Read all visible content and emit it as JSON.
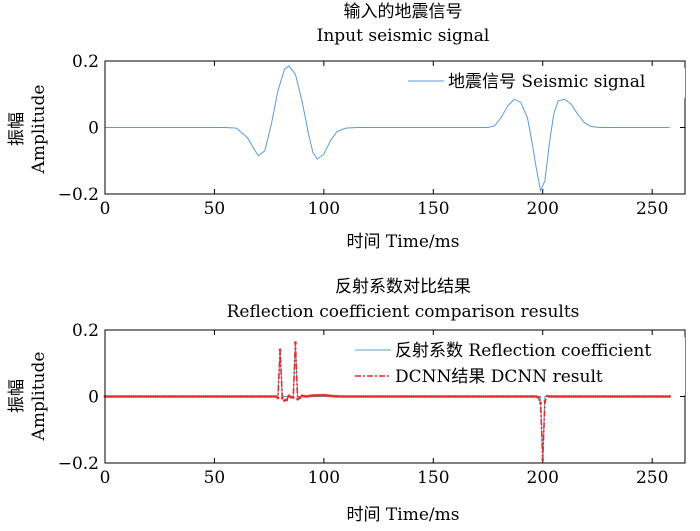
{
  "chart_data": [
    {
      "type": "line",
      "title": "输入的地震信号",
      "subtitle": "Input seismic signal",
      "xlabel": "时间 Time/ms",
      "ylabel_cn": "振幅",
      "ylabel_en": "Amplitude",
      "xlim": [
        0,
        265
      ],
      "ylim": [
        -0.2,
        0.2
      ],
      "xticks": [
        "0",
        "50",
        "100",
        "150",
        "200",
        "250"
      ],
      "yticks": [
        "0.2",
        "0",
        "−0.2"
      ],
      "legend_position": "top-right",
      "series": [
        {
          "name": "地震信号 Seismic signal",
          "color": "#5b9bd5",
          "style": "solid",
          "points": [
            [
              0,
              0
            ],
            [
              55,
              0
            ],
            [
              60,
              -0.002
            ],
            [
              65,
              -0.03
            ],
            [
              70,
              -0.085
            ],
            [
              73,
              -0.07
            ],
            [
              76,
              0.01
            ],
            [
              79,
              0.11
            ],
            [
              82,
              0.175
            ],
            [
              84,
              0.185
            ],
            [
              87,
              0.16
            ],
            [
              90,
              0.08
            ],
            [
              93,
              -0.02
            ],
            [
              95,
              -0.075
            ],
            [
              97,
              -0.095
            ],
            [
              100,
              -0.08
            ],
            [
              103,
              -0.04
            ],
            [
              106,
              -0.012
            ],
            [
              110,
              -0.002
            ],
            [
              115,
              0
            ],
            [
              175,
              0
            ],
            [
              178,
              0.005
            ],
            [
              181,
              0.03
            ],
            [
              184,
              0.065
            ],
            [
              187,
              0.085
            ],
            [
              190,
              0.075
            ],
            [
              193,
              0.03
            ],
            [
              195,
              -0.04
            ],
            [
              197,
              -0.12
            ],
            [
              199,
              -0.19
            ],
            [
              201,
              -0.16
            ],
            [
              203,
              -0.05
            ],
            [
              205,
              0.04
            ],
            [
              207,
              0.08
            ],
            [
              210,
              0.085
            ],
            [
              213,
              0.07
            ],
            [
              216,
              0.04
            ],
            [
              219,
              0.015
            ],
            [
              222,
              0.003
            ],
            [
              226,
              0
            ],
            [
              258,
              0
            ]
          ]
        }
      ]
    },
    {
      "type": "line",
      "title": "反射系数对比结果",
      "subtitle": "Reflection coefficient comparison results",
      "xlabel": "时间 Time/ms",
      "ylabel_cn": "振幅",
      "ylabel_en": "Amplitude",
      "xlim": [
        0,
        265
      ],
      "ylim": [
        -0.2,
        0.2
      ],
      "xticks": [
        "0",
        "50",
        "100",
        "150",
        "200",
        "250"
      ],
      "yticks": [
        "0.2",
        "0",
        "−0.2"
      ],
      "legend_position": "top-right",
      "series": [
        {
          "name": "反射系数 Reflection coefficient",
          "color": "#5b9bd5",
          "style": "solid",
          "points": [
            [
              0,
              0
            ],
            [
              79,
              0
            ],
            [
              80,
              0.14
            ],
            [
              81,
              0
            ],
            [
              86,
              0
            ],
            [
              87,
              0.16
            ],
            [
              88,
              0
            ],
            [
              199,
              0
            ],
            [
              200,
              -0.19
            ],
            [
              201,
              0
            ],
            [
              258,
              0
            ]
          ]
        },
        {
          "name": "DCNN结果 DCNN result",
          "color": "#e0312e",
          "style": "dash-dot-marker",
          "points": [
            [
              0,
              0
            ],
            [
              78,
              0
            ],
            [
              79,
              -0.004
            ],
            [
              80,
              0.14
            ],
            [
              81,
              -0.005
            ],
            [
              82,
              -0.012
            ],
            [
              83,
              -0.01
            ],
            [
              84,
              0.002
            ],
            [
              85,
              -0.002
            ],
            [
              86,
              -0.003
            ],
            [
              87,
              0.162
            ],
            [
              88,
              -0.008
            ],
            [
              89,
              -0.004
            ],
            [
              90,
              0.002
            ],
            [
              92,
              0
            ],
            [
              95,
              0.003
            ],
            [
              100,
              0.004
            ],
            [
              104,
              0.001
            ],
            [
              108,
              0
            ],
            [
              197,
              0
            ],
            [
              198,
              -0.003
            ],
            [
              199,
              -0.02
            ],
            [
              200,
              -0.19
            ],
            [
              201,
              -0.015
            ],
            [
              202,
              0.002
            ],
            [
              203,
              0
            ],
            [
              258,
              0
            ]
          ]
        }
      ]
    }
  ]
}
